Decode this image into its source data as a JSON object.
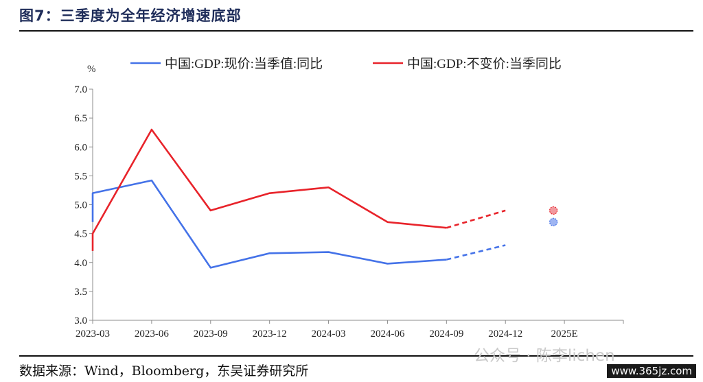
{
  "figure": {
    "title": "图7：三季度为全年经济增速底部",
    "source": "数据来源：Wind，Bloomberg，东吴证券研究所",
    "watermark": "公众号 · 陈李lichen",
    "site": "www.365jz.com"
  },
  "chart_data": {
    "type": "line",
    "title": "",
    "xlabel": "",
    "ylabel": "%",
    "ylim": [
      3.0,
      7.0
    ],
    "yticks": [
      "3.0",
      "3.5",
      "4.0",
      "4.5",
      "5.0",
      "5.5",
      "6.0",
      "6.5",
      "7.0"
    ],
    "xtick_labels": [
      "2023-03",
      "2023-06",
      "2023-09",
      "2023-12",
      "2024-03",
      "2024-06",
      "2024-09",
      "2024-12",
      "2025E"
    ],
    "legend_position": "top",
    "grid": false,
    "series": [
      {
        "name": "中国:GDP:现价:当季值:同比",
        "color": "#4472e8",
        "x": [
          -0.35,
          0,
          1,
          2,
          3,
          4,
          5,
          6
        ],
        "values": [
          4.7,
          5.2,
          5.42,
          3.91,
          4.16,
          4.18,
          3.98,
          4.05
        ],
        "forecast": {
          "x": [
            6,
            7
          ],
          "values": [
            4.05,
            4.3
          ]
        },
        "estimate": {
          "x": 8,
          "value": 4.7
        }
      },
      {
        "name": "中国:GDP:不变价:当季同比",
        "color": "#e8232a",
        "x": [
          -0.35,
          0,
          1,
          2,
          3,
          4,
          5,
          6
        ],
        "values": [
          4.2,
          4.5,
          6.3,
          4.9,
          5.2,
          5.3,
          4.7,
          4.6
        ],
        "forecast": {
          "x": [
            6,
            7
          ],
          "values": [
            4.6,
            4.9
          ]
        },
        "estimate": {
          "x": 8,
          "value": 4.9
        }
      }
    ]
  }
}
